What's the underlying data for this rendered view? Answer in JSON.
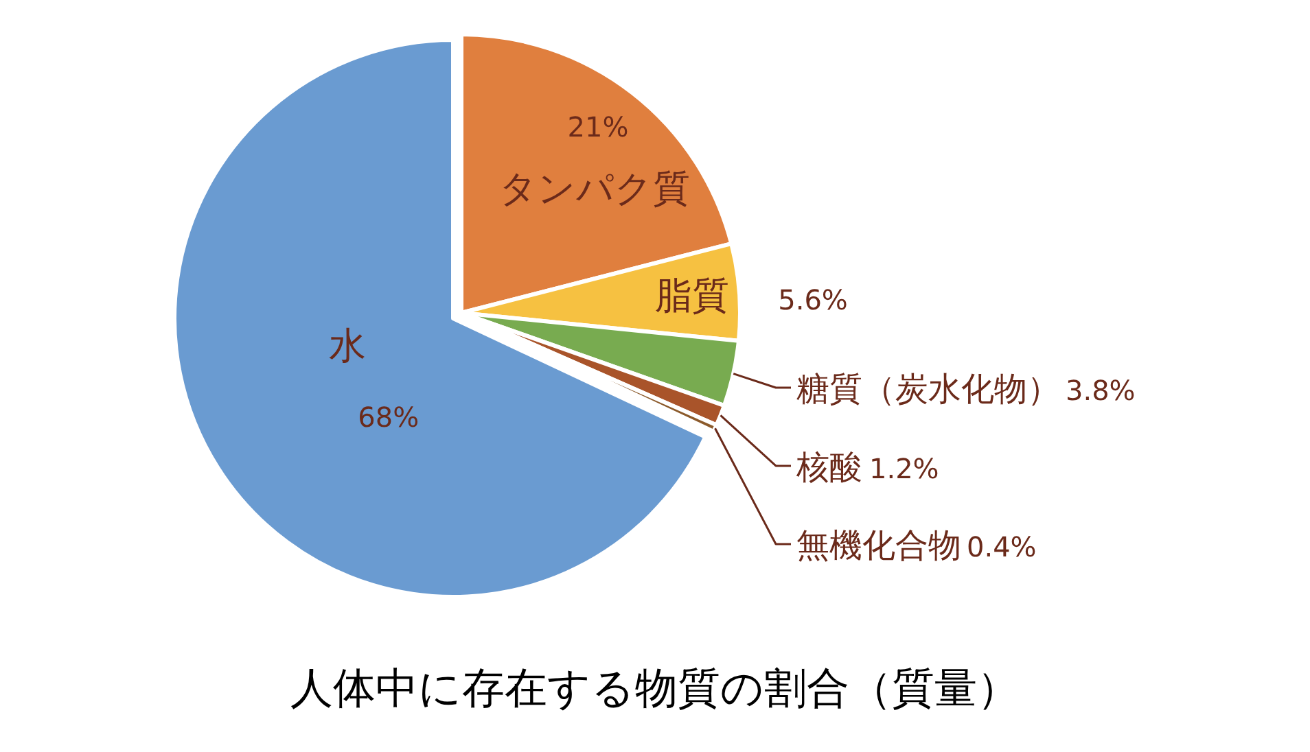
{
  "chart_data": {
    "type": "pie",
    "title": "人体中に存在する物質の割合（質量）",
    "categories": [
      "タンパク質",
      "脂質",
      "糖質（炭水化物）",
      "核酸",
      "無機化合物",
      "水"
    ],
    "values": [
      21,
      5.6,
      3.8,
      1.2,
      0.4,
      68
    ],
    "value_labels": [
      "21%",
      "5.6%",
      "3.8%",
      "1.2%",
      "0.4%",
      "68%"
    ],
    "colors": [
      "#e07f3e",
      "#f6c141",
      "#78ab50",
      "#a9542a",
      "#8b5a2b",
      "#6a9bd1"
    ]
  }
}
